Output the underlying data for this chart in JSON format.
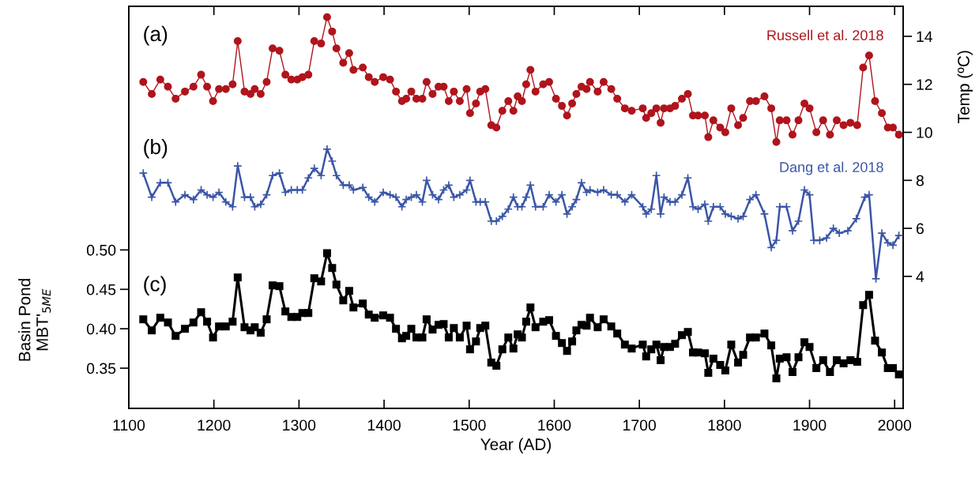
{
  "chart_data": {
    "type": "line",
    "xlabel": "Year (AD)",
    "ylabel": "Basin Pond\nMBT'$_{5ME}$",
    "y2label": "Temp (ºC)",
    "xlim": [
      1100,
      2010
    ],
    "xticks": [
      1100,
      1200,
      1300,
      1400,
      1500,
      1600,
      1700,
      1800,
      1900,
      2000
    ],
    "ylim": [
      0.299,
      0.809
    ],
    "yticks": [
      {
        "value": 0.35,
        "label": "0.35"
      },
      {
        "value": 0.4,
        "label": "0.40"
      },
      {
        "value": 0.45,
        "label": "0.45"
      },
      {
        "value": 0.5,
        "label": "0.50"
      }
    ],
    "y2lim": [
      -1.5,
      15.25
    ],
    "y2ticks": [
      4,
      6,
      8,
      10,
      12,
      14
    ],
    "annotations": [
      "(a)",
      "(b)",
      "(c)"
    ],
    "series": [
      {
        "name": "Russell et al. 2018",
        "color": "#b0141c",
        "marker": "circle",
        "axis": "y2",
        "x": [
          1117,
          1127,
          1137,
          1146,
          1155,
          1166,
          1176,
          1185,
          1192,
          1199,
          1206,
          1214,
          1222,
          1228,
          1236,
          1243,
          1248,
          1255,
          1262,
          1269,
          1277,
          1284,
          1291,
          1298,
          1304,
          1311,
          1318,
          1326,
          1333,
          1339,
          1344,
          1352,
          1359,
          1364,
          1375,
          1382,
          1389,
          1399,
          1407,
          1414,
          1421,
          1426,
          1432,
          1438,
          1445,
          1450,
          1457,
          1464,
          1470,
          1476,
          1482,
          1489,
          1497,
          1501,
          1508,
          1513,
          1519,
          1526,
          1532,
          1539,
          1546,
          1552,
          1557,
          1562,
          1567,
          1572,
          1578,
          1587,
          1594,
          1602,
          1609,
          1615,
          1621,
          1626,
          1632,
          1638,
          1642,
          1651,
          1658,
          1667,
          1674,
          1683,
          1691,
          1704,
          1708,
          1714,
          1720,
          1725,
          1729,
          1736,
          1742,
          1750,
          1757,
          1763,
          1769,
          1777,
          1781,
          1787,
          1795,
          1801,
          1808,
          1816,
          1822,
          1830,
          1837,
          1847,
          1855,
          1861,
          1865,
          1873,
          1880,
          1887,
          1894,
          1900,
          1908,
          1916,
          1924,
          1932,
          1940,
          1948,
          1956,
          1963,
          1970,
          1977,
          1985,
          1992,
          1998,
          2005
        ],
        "values": [
          12.1,
          11.6,
          12.2,
          11.9,
          11.4,
          11.7,
          11.9,
          12.4,
          11.9,
          11.3,
          11.8,
          11.8,
          12.0,
          13.8,
          11.7,
          11.6,
          11.8,
          11.6,
          12.1,
          13.5,
          13.4,
          12.4,
          12.2,
          12.2,
          12.3,
          12.4,
          13.8,
          13.7,
          14.8,
          14.2,
          13.5,
          12.9,
          13.3,
          12.6,
          12.7,
          12.3,
          12.1,
          12.3,
          12.2,
          11.7,
          11.3,
          11.4,
          11.7,
          11.4,
          11.4,
          12.1,
          11.6,
          11.9,
          11.9,
          11.3,
          11.7,
          11.3,
          11.8,
          10.8,
          11.2,
          11.7,
          11.8,
          10.3,
          10.2,
          10.9,
          11.3,
          10.9,
          11.5,
          11.3,
          12.0,
          12.6,
          11.7,
          12.0,
          12.1,
          11.4,
          11.1,
          10.7,
          11.2,
          11.6,
          11.9,
          11.8,
          12.1,
          11.7,
          12.1,
          11.8,
          11.4,
          11.0,
          10.9,
          11.0,
          10.6,
          10.8,
          11.0,
          10.4,
          11.0,
          11.0,
          11.1,
          11.4,
          11.6,
          10.7,
          10.7,
          10.7,
          9.8,
          10.5,
          10.2,
          10.0,
          11.0,
          10.3,
          10.6,
          11.3,
          11.3,
          11.5,
          11.0,
          9.6,
          10.5,
          10.5,
          9.9,
          10.5,
          11.2,
          11.0,
          10.0,
          10.5,
          9.9,
          10.5,
          10.3,
          10.4,
          10.3,
          12.7,
          13.2,
          11.3,
          10.8,
          10.2,
          10.2,
          9.9
        ]
      },
      {
        "name": "Dang et al. 2018",
        "color": "#3b56a6",
        "marker": "cross",
        "axis": "y2",
        "x": [
          1117,
          1127,
          1137,
          1146,
          1155,
          1166,
          1176,
          1185,
          1192,
          1199,
          1206,
          1214,
          1222,
          1228,
          1236,
          1243,
          1248,
          1255,
          1262,
          1269,
          1277,
          1284,
          1291,
          1298,
          1304,
          1311,
          1318,
          1326,
          1333,
          1339,
          1344,
          1352,
          1359,
          1364,
          1375,
          1382,
          1389,
          1399,
          1407,
          1414,
          1421,
          1426,
          1432,
          1438,
          1445,
          1450,
          1457,
          1464,
          1470,
          1476,
          1482,
          1489,
          1497,
          1501,
          1508,
          1513,
          1519,
          1526,
          1532,
          1539,
          1546,
          1552,
          1557,
          1562,
          1567,
          1572,
          1578,
          1587,
          1594,
          1602,
          1609,
          1615,
          1621,
          1626,
          1632,
          1638,
          1642,
          1651,
          1658,
          1667,
          1674,
          1683,
          1691,
          1704,
          1708,
          1714,
          1720,
          1725,
          1729,
          1736,
          1742,
          1750,
          1757,
          1763,
          1769,
          1777,
          1781,
          1787,
          1795,
          1801,
          1808,
          1816,
          1822,
          1830,
          1837,
          1847,
          1855,
          1861,
          1865,
          1873,
          1880,
          1887,
          1894,
          1900,
          1905,
          1912,
          1920,
          1928,
          1935,
          1945,
          1955,
          1965,
          1970,
          1978,
          1985,
          1992,
          1998,
          2005
        ],
        "values": [
          8.3,
          7.3,
          7.9,
          7.9,
          7.1,
          7.4,
          7.2,
          7.6,
          7.4,
          7.3,
          7.5,
          7.1,
          6.9,
          8.6,
          7.3,
          7.3,
          6.9,
          7.0,
          7.4,
          8.2,
          8.3,
          7.5,
          7.6,
          7.6,
          7.6,
          8.1,
          8.5,
          8.2,
          9.3,
          8.8,
          8.2,
          7.8,
          7.8,
          7.6,
          7.7,
          7.3,
          7.1,
          7.5,
          7.4,
          7.3,
          6.9,
          7.2,
          7.3,
          7.4,
          7.1,
          8.0,
          7.4,
          7.2,
          7.6,
          7.8,
          7.3,
          7.4,
          7.6,
          8.0,
          7.1,
          7.1,
          7.1,
          6.3,
          6.3,
          6.5,
          6.8,
          7.3,
          6.9,
          6.9,
          7.3,
          7.8,
          6.9,
          6.9,
          7.4,
          7.1,
          7.4,
          6.6,
          6.9,
          7.2,
          7.9,
          7.5,
          7.6,
          7.5,
          7.6,
          7.4,
          7.4,
          7.1,
          7.4,
          6.9,
          6.6,
          6.8,
          8.2,
          6.6,
          7.3,
          7.1,
          7.1,
          7.4,
          8.1,
          6.9,
          6.8,
          7.0,
          6.3,
          6.9,
          6.9,
          6.6,
          6.5,
          6.4,
          6.5,
          7.2,
          7.4,
          6.6,
          5.2,
          5.5,
          6.9,
          6.9,
          5.9,
          6.3,
          7.6,
          7.4,
          5.5,
          5.5,
          5.6,
          6.0,
          5.8,
          5.9,
          6.4,
          7.3,
          7.4,
          3.9,
          5.8,
          5.4,
          5.3,
          5.7
        ]
      },
      {
        "color": "#000000",
        "marker": "square",
        "x": [
          1117,
          1127,
          1137,
          1146,
          1155,
          1166,
          1176,
          1185,
          1192,
          1199,
          1206,
          1214,
          1222,
          1228,
          1236,
          1243,
          1248,
          1255,
          1262,
          1269,
          1277,
          1284,
          1291,
          1298,
          1304,
          1311,
          1318,
          1326,
          1333,
          1339,
          1344,
          1352,
          1359,
          1364,
          1375,
          1382,
          1389,
          1399,
          1407,
          1414,
          1421,
          1426,
          1432,
          1438,
          1445,
          1450,
          1457,
          1464,
          1470,
          1476,
          1482,
          1489,
          1497,
          1501,
          1508,
          1513,
          1519,
          1526,
          1532,
          1539,
          1546,
          1552,
          1557,
          1562,
          1567,
          1572,
          1578,
          1587,
          1594,
          1602,
          1609,
          1615,
          1621,
          1626,
          1632,
          1638,
          1642,
          1651,
          1658,
          1667,
          1674,
          1683,
          1691,
          1704,
          1708,
          1714,
          1720,
          1725,
          1729,
          1736,
          1742,
          1750,
          1757,
          1763,
          1769,
          1777,
          1781,
          1787,
          1795,
          1801,
          1808,
          1816,
          1822,
          1830,
          1837,
          1847,
          1855,
          1861,
          1865,
          1873,
          1880,
          1887,
          1894,
          1900,
          1908,
          1916,
          1924,
          1932,
          1940,
          1948,
          1956,
          1963,
          1970,
          1977,
          1985,
          1992,
          1998,
          2005
        ],
        "values": [
          0.412,
          0.398,
          0.414,
          0.408,
          0.391,
          0.4,
          0.408,
          0.421,
          0.409,
          0.389,
          0.403,
          0.403,
          0.409,
          0.465,
          0.402,
          0.398,
          0.402,
          0.395,
          0.412,
          0.455,
          0.454,
          0.422,
          0.415,
          0.415,
          0.42,
          0.42,
          0.464,
          0.46,
          0.496,
          0.477,
          0.456,
          0.436,
          0.448,
          0.427,
          0.432,
          0.418,
          0.414,
          0.417,
          0.414,
          0.4,
          0.388,
          0.391,
          0.4,
          0.389,
          0.389,
          0.412,
          0.399,
          0.405,
          0.406,
          0.389,
          0.401,
          0.389,
          0.404,
          0.374,
          0.384,
          0.401,
          0.404,
          0.357,
          0.353,
          0.374,
          0.389,
          0.375,
          0.393,
          0.389,
          0.409,
          0.427,
          0.402,
          0.409,
          0.411,
          0.391,
          0.382,
          0.372,
          0.384,
          0.398,
          0.405,
          0.404,
          0.414,
          0.402,
          0.412,
          0.403,
          0.394,
          0.38,
          0.375,
          0.38,
          0.365,
          0.374,
          0.38,
          0.36,
          0.377,
          0.377,
          0.381,
          0.392,
          0.396,
          0.37,
          0.37,
          0.369,
          0.344,
          0.362,
          0.354,
          0.347,
          0.38,
          0.357,
          0.367,
          0.389,
          0.389,
          0.394,
          0.379,
          0.337,
          0.362,
          0.364,
          0.345,
          0.364,
          0.383,
          0.377,
          0.35,
          0.36,
          0.345,
          0.36,
          0.356,
          0.36,
          0.358,
          0.43,
          0.443,
          0.385,
          0.37,
          0.35,
          0.35,
          0.342
        ]
      }
    ]
  }
}
